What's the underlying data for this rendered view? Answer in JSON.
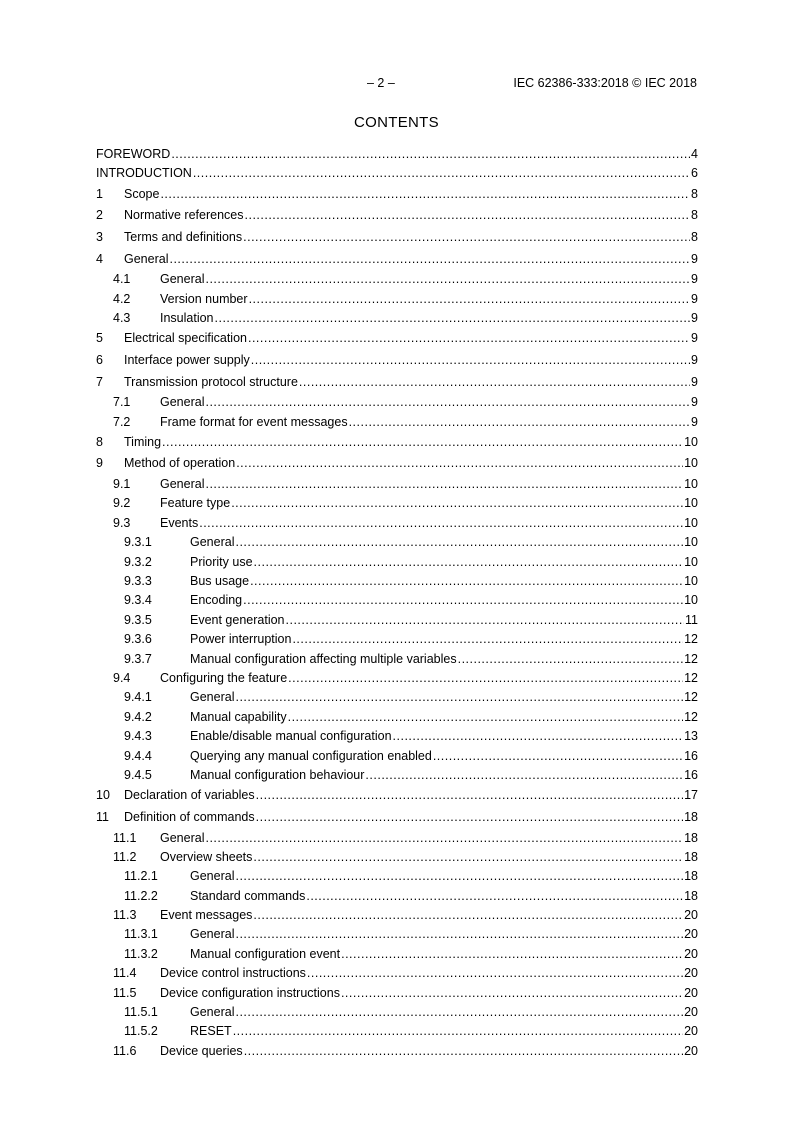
{
  "header": {
    "page_label": "– 2 –",
    "document_ref": "IEC 62386-333:2018 © IEC 2018"
  },
  "title": "CONTENTS",
  "toc": [
    {
      "level": 0,
      "num": "",
      "text": "FOREWORD",
      "page": "4"
    },
    {
      "level": 0,
      "num": "",
      "text": "INTRODUCTION",
      "page": "6"
    },
    {
      "level": 1,
      "num": "1",
      "text": "Scope",
      "page": "8"
    },
    {
      "level": 1,
      "num": "2",
      "text": "Normative references",
      "page": "8"
    },
    {
      "level": 1,
      "num": "3",
      "text": "Terms and definitions",
      "page": "8"
    },
    {
      "level": 1,
      "num": "4",
      "text": "General",
      "page": "9"
    },
    {
      "level": 2,
      "num": "4.1",
      "text": "General",
      "page": "9"
    },
    {
      "level": 2,
      "num": "4.2",
      "text": "Version number",
      "page": "9"
    },
    {
      "level": 2,
      "num": "4.3",
      "text": "Insulation",
      "page": "9"
    },
    {
      "level": 1,
      "num": "5",
      "text": "Electrical specification",
      "page": "9"
    },
    {
      "level": 1,
      "num": "6",
      "text": "Interface power supply",
      "page": "9"
    },
    {
      "level": 1,
      "num": "7",
      "text": "Transmission protocol structure",
      "page": "9"
    },
    {
      "level": 2,
      "num": "7.1",
      "text": "General",
      "page": "9"
    },
    {
      "level": 2,
      "num": "7.2",
      "text": "Frame format for event messages",
      "page": "9"
    },
    {
      "level": 1,
      "num": "8",
      "text": "Timing",
      "page": "10"
    },
    {
      "level": 1,
      "num": "9",
      "text": "Method of operation",
      "page": "10"
    },
    {
      "level": 2,
      "num": "9.1",
      "text": "General",
      "page": "10"
    },
    {
      "level": 2,
      "num": "9.2",
      "text": "Feature type",
      "page": "10"
    },
    {
      "level": 2,
      "num": "9.3",
      "text": "Events",
      "page": "10"
    },
    {
      "level": 3,
      "num": "9.3.1",
      "text": "General",
      "page": "10"
    },
    {
      "level": 3,
      "num": "9.3.2",
      "text": "Priority use",
      "page": "10"
    },
    {
      "level": 3,
      "num": "9.3.3",
      "text": "Bus usage",
      "page": "10"
    },
    {
      "level": 3,
      "num": "9.3.4",
      "text": "Encoding",
      "page": "10"
    },
    {
      "level": 3,
      "num": "9.3.5",
      "text": "Event generation",
      "page": "11"
    },
    {
      "level": 3,
      "num": "9.3.6",
      "text": "Power interruption",
      "page": "12"
    },
    {
      "level": 3,
      "num": "9.3.7",
      "text": "Manual configuration affecting multiple variables",
      "page": "12"
    },
    {
      "level": 2,
      "num": "9.4",
      "text": "Configuring the feature",
      "page": "12"
    },
    {
      "level": 3,
      "num": "9.4.1",
      "text": "General",
      "page": "12"
    },
    {
      "level": 3,
      "num": "9.4.2",
      "text": "Manual capability",
      "page": "12"
    },
    {
      "level": 3,
      "num": "9.4.3",
      "text": "Enable/disable manual configuration",
      "page": "13"
    },
    {
      "level": 3,
      "num": "9.4.4",
      "text": "Querying any manual configuration enabled",
      "page": "16"
    },
    {
      "level": 3,
      "num": "9.4.5",
      "text": "Manual configuration behaviour",
      "page": "16"
    },
    {
      "level": 1,
      "num": "10",
      "text": "Declaration of variables",
      "page": "17"
    },
    {
      "level": 1,
      "num": "11",
      "text": "Definition of commands",
      "page": "18"
    },
    {
      "level": 2,
      "num": "11.1",
      "text": "General",
      "page": "18"
    },
    {
      "level": 2,
      "num": "11.2",
      "text": "Overview sheets",
      "page": "18"
    },
    {
      "level": 3,
      "num": "11.2.1",
      "text": "General",
      "page": "18"
    },
    {
      "level": 3,
      "num": "11.2.2",
      "text": "Standard commands",
      "page": "18"
    },
    {
      "level": 2,
      "num": "11.3",
      "text": "Event messages",
      "page": "20"
    },
    {
      "level": 3,
      "num": "11.3.1",
      "text": "General",
      "page": "20"
    },
    {
      "level": 3,
      "num": "11.3.2",
      "text": "Manual configuration event",
      "page": "20"
    },
    {
      "level": 2,
      "num": "11.4",
      "text": "Device control instructions",
      "page": "20"
    },
    {
      "level": 2,
      "num": "11.5",
      "text": "Device configuration instructions",
      "page": "20"
    },
    {
      "level": 3,
      "num": "11.5.1",
      "text": "General",
      "page": "20"
    },
    {
      "level": 3,
      "num": "11.5.2",
      "text": "RESET",
      "page": "20"
    },
    {
      "level": 2,
      "num": "11.6",
      "text": "Device queries",
      "page": "20"
    }
  ]
}
